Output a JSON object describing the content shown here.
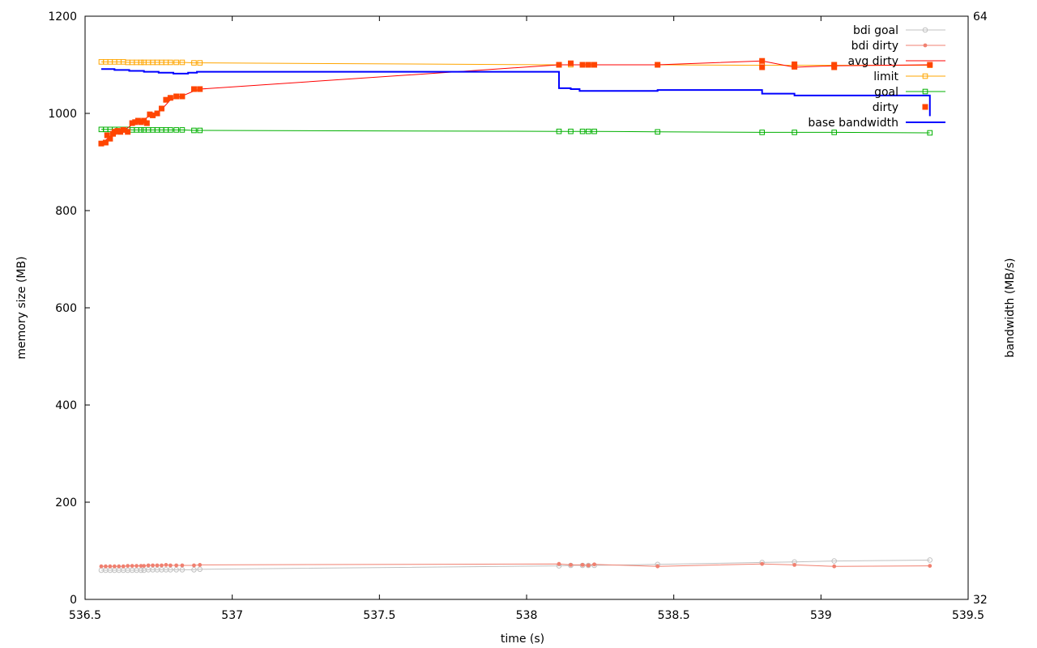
{
  "chart_data": {
    "type": "line",
    "xlabel": "time (s)",
    "ylabel": "memory size (MB)",
    "y2label": "bandwidth (MB/s)",
    "xlim": [
      536.5,
      539.5
    ],
    "ylim": [
      0,
      1200
    ],
    "y2lim": [
      32,
      64
    ],
    "x_ticks": [
      "536.5",
      "537",
      "537.5",
      "538",
      "538.5",
      "539",
      "539.5"
    ],
    "y_ticks": [
      "0",
      "200",
      "400",
      "600",
      "800",
      "1000",
      "1200"
    ],
    "y2_ticks": [
      "32",
      "64"
    ],
    "grid": false,
    "legend_position": "top-right",
    "series": [
      {
        "name": "bdi goal",
        "color": "#c0c0c0",
        "marker": "circle-open",
        "axis": "left",
        "x": [
          536.555,
          536.57,
          536.585,
          536.6,
          536.615,
          536.63,
          536.645,
          536.66,
          536.675,
          536.69,
          536.7,
          536.715,
          536.73,
          536.745,
          536.76,
          536.775,
          536.79,
          536.81,
          536.83,
          536.87,
          536.89,
          538.11,
          538.15,
          538.19,
          538.21,
          538.23,
          538.445,
          538.8,
          538.91,
          539.045,
          539.37
        ],
        "y": [
          60,
          60,
          60,
          60,
          60,
          60,
          60,
          60,
          60,
          60,
          60,
          61,
          61,
          61,
          61,
          61,
          61,
          61,
          61,
          61,
          62,
          69,
          70,
          70,
          70,
          70,
          72,
          76,
          77,
          79,
          81
        ]
      },
      {
        "name": "bdi dirty",
        "color": "#f08070",
        "marker": "dot",
        "axis": "left",
        "x": [
          536.555,
          536.57,
          536.585,
          536.6,
          536.615,
          536.63,
          536.645,
          536.66,
          536.675,
          536.69,
          536.7,
          536.715,
          536.73,
          536.745,
          536.76,
          536.775,
          536.79,
          536.81,
          536.83,
          536.87,
          536.89,
          538.11,
          538.15,
          538.19,
          538.21,
          538.23,
          538.445,
          538.8,
          538.91,
          539.045,
          539.37
        ],
        "y": [
          68,
          68,
          68,
          68,
          68,
          68,
          69,
          69,
          69,
          69,
          69,
          70,
          70,
          70,
          70,
          71,
          70,
          70,
          70,
          70,
          71,
          73,
          71,
          71,
          70,
          72,
          68,
          73,
          71,
          68,
          69
        ]
      },
      {
        "name": "avg dirty",
        "color": "#ff0000",
        "marker": "none",
        "axis": "left",
        "x": [
          536.555,
          536.57,
          536.585,
          536.6,
          536.615,
          536.63,
          536.645,
          536.66,
          536.675,
          536.69,
          536.7,
          536.715,
          536.73,
          536.745,
          536.76,
          536.775,
          536.79,
          536.81,
          536.83,
          536.87,
          536.89,
          538.11,
          538.15,
          538.19,
          538.21,
          538.23,
          538.445,
          538.8,
          538.91,
          539.045,
          539.37
        ],
        "y": [
          938,
          945,
          952,
          958,
          962,
          965,
          970,
          977,
          982,
          986,
          988,
          993,
          997,
          1002,
          1008,
          1018,
          1028,
          1032,
          1036,
          1046,
          1050,
          1100,
          1100,
          1100,
          1100,
          1100,
          1100,
          1108,
          1095,
          1098,
          1100
        ]
      },
      {
        "name": "limit",
        "color": "#ffa500",
        "marker": "square-open",
        "axis": "left",
        "x": [
          536.555,
          536.57,
          536.585,
          536.6,
          536.615,
          536.63,
          536.645,
          536.66,
          536.675,
          536.69,
          536.7,
          536.715,
          536.73,
          536.745,
          536.76,
          536.775,
          536.79,
          536.81,
          536.83,
          536.87,
          536.89,
          538.11,
          538.15,
          538.19,
          538.21,
          538.23,
          538.445,
          538.8,
          538.91,
          539.045,
          539.37
        ],
        "y": [
          1106,
          1106,
          1106,
          1106,
          1106,
          1106,
          1105,
          1105,
          1105,
          1105,
          1105,
          1105,
          1105,
          1105,
          1105,
          1105,
          1105,
          1105,
          1105,
          1104,
          1104,
          1100,
          1100,
          1100,
          1100,
          1100,
          1100,
          1099,
          1099,
          1099,
          1099
        ]
      },
      {
        "name": "goal",
        "color": "#00b000",
        "marker": "square-open",
        "axis": "left",
        "x": [
          536.555,
          536.57,
          536.585,
          536.6,
          536.615,
          536.63,
          536.645,
          536.66,
          536.675,
          536.69,
          536.7,
          536.715,
          536.73,
          536.745,
          536.76,
          536.775,
          536.79,
          536.81,
          536.83,
          536.87,
          536.89,
          538.11,
          538.15,
          538.19,
          538.21,
          538.23,
          538.445,
          538.8,
          538.91,
          539.045,
          539.37
        ],
        "y": [
          967,
          967,
          967,
          967,
          967,
          967,
          967,
          966,
          966,
          966,
          966,
          966,
          966,
          966,
          966,
          966,
          966,
          966,
          966,
          965,
          965,
          963,
          963,
          963,
          963,
          963,
          962,
          961,
          961,
          961,
          960
        ]
      },
      {
        "name": "dirty",
        "color": "#ff4500",
        "marker": "square-filled",
        "axis": "left",
        "x": [
          536.555,
          536.57,
          536.575,
          536.585,
          536.595,
          536.6,
          536.61,
          536.62,
          536.63,
          536.645,
          536.66,
          536.67,
          536.68,
          536.69,
          536.7,
          536.71,
          536.72,
          536.73,
          536.745,
          536.76,
          536.775,
          536.79,
          536.81,
          536.83,
          536.87,
          536.89,
          538.11,
          538.15,
          538.19,
          538.21,
          538.23,
          538.445,
          538.8,
          538.8,
          538.91,
          538.91,
          539.045,
          539.045,
          539.37
        ],
        "y": [
          938,
          940,
          955,
          948,
          958,
          962,
          964,
          962,
          966,
          962,
          980,
          982,
          985,
          982,
          985,
          980,
          998,
          996,
          1000,
          1010,
          1028,
          1032,
          1035,
          1035,
          1050,
          1050,
          1100,
          1103,
          1100,
          1100,
          1100,
          1100,
          1108,
          1095,
          1101,
          1096,
          1100,
          1095,
          1100
        ]
      },
      {
        "name": "base bandwidth",
        "color": "#0000ff",
        "marker": "none",
        "axis": "right",
        "step": true,
        "x": [
          536.555,
          536.6,
          536.65,
          536.7,
          536.75,
          536.8,
          536.85,
          536.88,
          538.11,
          538.15,
          538.18,
          538.445,
          538.8,
          538.91,
          539.37
        ],
        "y": [
          61.1,
          61.05,
          61.0,
          60.95,
          60.9,
          60.85,
          60.9,
          60.95,
          60.05,
          60.0,
          59.9,
          59.95,
          59.75,
          59.65,
          59.1
        ]
      }
    ]
  }
}
